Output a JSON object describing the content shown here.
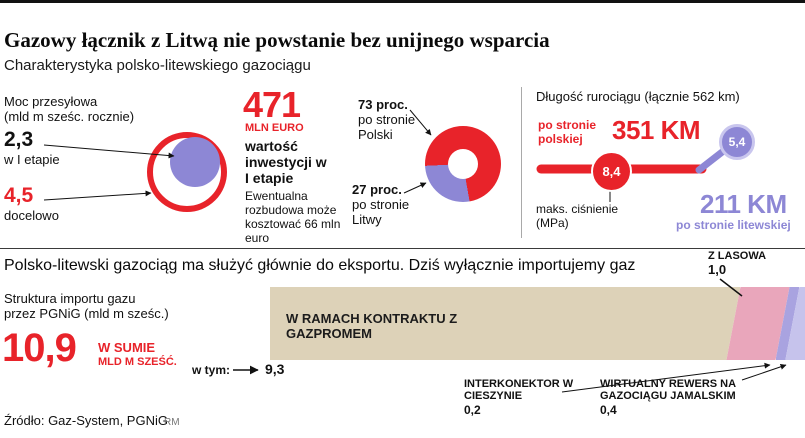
{
  "headline": "Gazowy łącznik z Litwą nie powstanie bez unijnego wsparcia",
  "subtitle": "Charakterystyka polsko-litewskiego gazociągu",
  "capacity": {
    "title": "Moc przesyłowa",
    "unit": "(mld m sześc. rocznie)",
    "stage1_value": "2,3",
    "stage1_label": "w I etapie",
    "target_value": "4,5",
    "target_label": "docelowo"
  },
  "investment": {
    "value": "471",
    "unit": "MLN EURO",
    "label": "wartość inwestycji w I etapie",
    "note": "Ewentualna rozbudowa może kosztować 66 mln euro"
  },
  "cost_split": {
    "poland_value": "73 proc.",
    "poland_label": "po stronie Polski",
    "lithuania_value": "27 proc.",
    "lithuania_label": "po stronie Litwy"
  },
  "length": {
    "title": "Długość rurociągu (łącznie 562 km)",
    "poland_side": "po stronie polskiej",
    "poland_km": "351 KM",
    "poland_pressure": "8,4",
    "lithuania_pressure": "5,4",
    "pressure_label": "maks. ciśnienie (MPa)",
    "lithuania_km": "211 KM",
    "lithuania_side": "po stronie litewskiej"
  },
  "section2": {
    "title": "Polsko-litewski gazociąg ma służyć głównie do eksportu. Dziś wyłącznie importujemy gaz"
  },
  "imports": {
    "title": "Struktura importu gazu",
    "subtitle": "przez PGNiG (mld m sześc.)",
    "total_value": "10,9",
    "total_label_1": "W SUMIE",
    "total_label_2": "MLD M SZEŚĆ.",
    "of_which": "w tym:",
    "gazprom_value": "9,3",
    "gazprom_label": "W RAMACH KONTRAKTU Z GAZPROMEM",
    "lasow_label": "Z LASOWA",
    "lasow_value": "1,0",
    "cieszyn_label": "INTERKONEKTOR W CIESZYNIE",
    "cieszyn_value": "0,2",
    "jamal_label": "WIRTUALNY REWERS NA GAZOCIĄGU JAMALSKIM",
    "jamal_value": "0,4"
  },
  "footer": {
    "source": "Źródło: Gaz-System, PGNiG",
    "credit": "RM"
  },
  "colors": {
    "red": "#e8232a",
    "purple": "#8d87d5",
    "beige": "#ddd2b8",
    "pink": "#e9a6bb",
    "violet": "#a9a3e0",
    "violet_light": "#c6c3ec"
  },
  "chart_data": [
    {
      "type": "pie",
      "title": "Podział kosztów inwestycji",
      "labels": [
        "po stronie Polski",
        "po stronie Litwy"
      ],
      "values": [
        73,
        27
      ],
      "colors": [
        "#e8232a",
        "#8d87d5"
      ],
      "donut": true
    },
    {
      "type": "bar",
      "title": "Struktura importu gazu przez PGNiG (mld m sześc.)",
      "categories": [
        "W ramach kontraktu z Gazpromem",
        "Z Lasowa",
        "Interkonektor w Cieszynie",
        "Wirtualny rewers na gazociągu jamalskim"
      ],
      "values": [
        9.3,
        1.0,
        0.2,
        0.4
      ],
      "total": 10.9,
      "colors": [
        "#ddd2b8",
        "#e9a6bb",
        "#a9a3e0",
        "#c6c3ec"
      ],
      "orientation": "horizontal",
      "stacked": true
    }
  ]
}
